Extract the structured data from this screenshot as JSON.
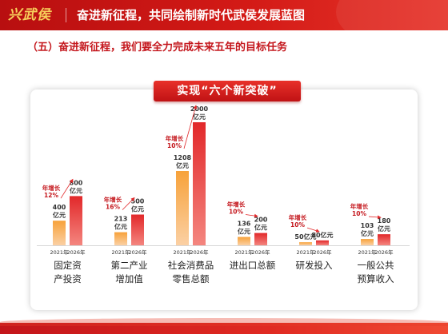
{
  "header": {
    "logo_text": "兴武侯",
    "title": "奋进新征程，共同绘制新时代武侯发展蓝图"
  },
  "section": {
    "title": "（五）奋进新征程，我们要全力完成未来五年的目标任务"
  },
  "banner": {
    "title": "实现“六个新突破”"
  },
  "colors": {
    "header_red": "#c4161c",
    "bar_2021": "#f7a23a",
    "bar_2026": "#e2282a",
    "accent_text": "#c4161c"
  },
  "chart_data": {
    "type": "bar",
    "title": "实现“六个新突破”",
    "xlabel": "",
    "ylabel": "",
    "series_labels": [
      "2021年",
      "2026年"
    ],
    "unit": "亿元",
    "growth_label": "年增长",
    "categories": [
      {
        "line1": "固定资",
        "line2": "产投资",
        "v2021": 400,
        "v2026": 800,
        "label2021": "400\n亿元",
        "label2026": "800\n亿元",
        "growth": "12%"
      },
      {
        "line1": "第二产业",
        "line2": "增加值",
        "v2021": 213,
        "v2026": 500,
        "label2021": "213\n亿元",
        "label2026": "500\n亿元",
        "growth": "16%"
      },
      {
        "line1": "社会消费品",
        "line2": "零售总额",
        "v2021": 1208,
        "v2026": 2000,
        "label2021": "1208\n亿元",
        "label2026": "2000\n亿元",
        "growth": "10%"
      },
      {
        "line1": "进出口总额",
        "line2": "",
        "v2021": 136,
        "v2026": 200,
        "label2021": "136\n亿元",
        "label2026": "200\n亿元",
        "growth": "10%"
      },
      {
        "line1": "研发投入",
        "line2": "",
        "v2021": 50,
        "v2026": 80,
        "label2021": "50亿元",
        "label2026": "80亿元",
        "growth": "10%"
      },
      {
        "line1": "一般公共",
        "line2": "预算收入",
        "v2021": 103,
        "v2026": 180,
        "label2021": "103\n亿元",
        "label2026": "180\n亿元",
        "growth": "10%"
      }
    ]
  }
}
